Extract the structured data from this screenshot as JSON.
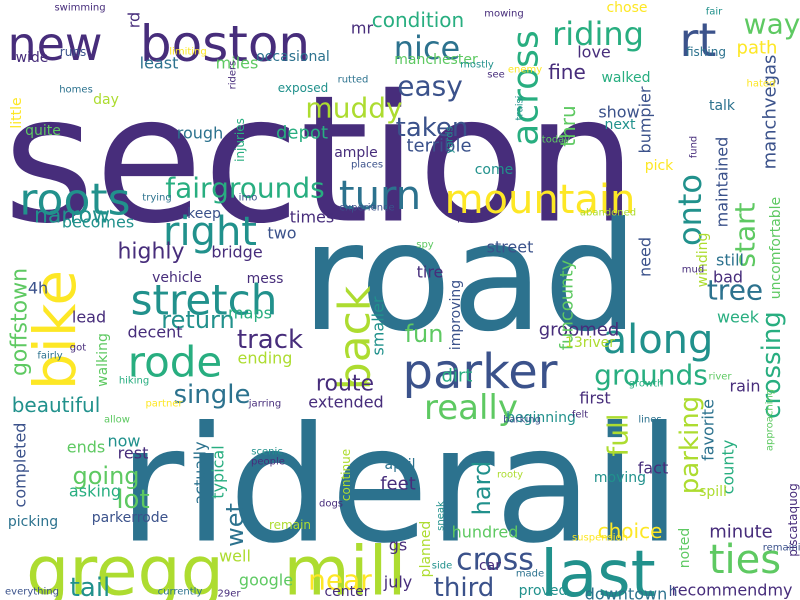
{
  "palette": {
    "deep_purple": "#472d7b",
    "indigo": "#3b528b",
    "blue": "#2c728e",
    "teal": "#21918c",
    "green": "#28ae80",
    "light_green": "#5ec962",
    "lime": "#addc30",
    "yellow": "#fde725"
  },
  "words": [
    {
      "text": "section",
      "color": "#472d7b"
    },
    {
      "text": "road",
      "color": "#2c728e"
    },
    {
      "text": "riderail",
      "color": "#2c728e"
    },
    {
      "text": "new",
      "color": "#472d7b"
    },
    {
      "text": "boston",
      "color": "#472d7b"
    },
    {
      "text": "gregg",
      "color": "#addc30"
    },
    {
      "text": "mill",
      "color": "#addc30"
    },
    {
      "text": "last",
      "color": "#21918c"
    },
    {
      "text": "bike",
      "color": "#fde725"
    },
    {
      "text": "parker",
      "color": "#3b528b"
    },
    {
      "text": "mountain",
      "color": "#fde725"
    },
    {
      "text": "roots",
      "color": "#21918c"
    },
    {
      "text": "right",
      "color": "#21918c"
    },
    {
      "text": "stretch",
      "color": "#21918c"
    },
    {
      "text": "turn",
      "color": "#2c728e"
    },
    {
      "text": "rt",
      "color": "#3b528b"
    },
    {
      "text": "riding",
      "color": "#28ae80"
    },
    {
      "text": "nice",
      "color": "#2c728e"
    },
    {
      "text": "way",
      "color": "#5ec962"
    },
    {
      "text": "across",
      "color": "#28ae80"
    },
    {
      "text": "rode",
      "color": "#28ae80"
    },
    {
      "text": "back",
      "color": "#addc30"
    },
    {
      "text": "along",
      "color": "#21918c"
    },
    {
      "text": "really",
      "color": "#5ec962"
    },
    {
      "text": "cross",
      "color": "#3b528b"
    },
    {
      "text": "ties",
      "color": "#5ec962"
    },
    {
      "text": "single",
      "color": "#2c728e"
    },
    {
      "text": "track",
      "color": "#472d7b"
    },
    {
      "text": "return",
      "color": "#21918c"
    },
    {
      "text": "fairgrounds",
      "color": "#28ae80"
    },
    {
      "text": "tree",
      "color": "#2c728e"
    },
    {
      "text": "start",
      "color": "#5ec962"
    },
    {
      "text": "onto",
      "color": "#21918c"
    },
    {
      "text": "muddy",
      "color": "#addc30"
    },
    {
      "text": "easy",
      "color": "#3b528b"
    },
    {
      "text": "taken",
      "color": "#3b528b"
    },
    {
      "text": "crossing",
      "color": "#28ae80"
    },
    {
      "text": "parking",
      "color": "#addc30"
    },
    {
      "text": "near",
      "color": "#fde725"
    },
    {
      "text": "third",
      "color": "#3b528b"
    },
    {
      "text": "tail",
      "color": "#21918c"
    },
    {
      "text": "lot",
      "color": "#5ec962"
    },
    {
      "text": "going",
      "color": "#5ec962"
    },
    {
      "text": "full",
      "color": "#addc30"
    },
    {
      "text": "hard",
      "color": "#21918c"
    },
    {
      "text": "grounds",
      "color": "#28ae80"
    },
    {
      "text": "goffstown",
      "color": "#5ec962"
    },
    {
      "text": "narrow",
      "color": "#21918c"
    },
    {
      "text": "highly",
      "color": "#472d7b"
    },
    {
      "text": "fun",
      "color": "#5ec962"
    },
    {
      "text": "route",
      "color": "#472d7b"
    },
    {
      "text": "beautiful",
      "color": "#21918c"
    },
    {
      "text": "condition",
      "color": "#28ae80"
    },
    {
      "text": "thru",
      "color": "#5ec962"
    },
    {
      "text": "fine",
      "color": "#472d7b"
    },
    {
      "text": "love",
      "color": "#472d7b"
    },
    {
      "text": "least",
      "color": "#2c728e"
    },
    {
      "text": "miles",
      "color": "#5ec962"
    },
    {
      "text": "path",
      "color": "#fde725"
    },
    {
      "text": "show",
      "color": "#3b528b"
    },
    {
      "text": "rough",
      "color": "#2c728e"
    },
    {
      "text": "depot",
      "color": "#28ae80"
    },
    {
      "text": "terrible",
      "color": "#3b528b"
    },
    {
      "text": "bumpier",
      "color": "#3b528b"
    },
    {
      "text": "maintained",
      "color": "#3b528b"
    },
    {
      "text": "manchvegas",
      "color": "#3b528b"
    },
    {
      "text": "uncomfortable",
      "color": "#5ec962"
    },
    {
      "text": "wet",
      "color": "#2c728e"
    },
    {
      "text": "groomed",
      "color": "#472d7b"
    },
    {
      "text": "dirt",
      "color": "#28ae80"
    },
    {
      "text": "street",
      "color": "#3b528b"
    },
    {
      "text": "tire",
      "color": "#472d7b"
    },
    {
      "text": "funcounty",
      "color": "#5ec962"
    },
    {
      "text": "still",
      "color": "#2c728e"
    },
    {
      "text": "bad",
      "color": "#472d7b"
    },
    {
      "text": "county",
      "color": "#28ae80"
    },
    {
      "text": "favorite",
      "color": "#2c728e"
    },
    {
      "text": "rain",
      "color": "#472d7b"
    },
    {
      "text": "week",
      "color": "#28ae80"
    },
    {
      "text": "need",
      "color": "#3b528b"
    },
    {
      "text": "fact",
      "color": "#472d7b"
    },
    {
      "text": "minute",
      "color": "#472d7b"
    },
    {
      "text": "choice",
      "color": "#fde725"
    },
    {
      "text": "recommendmy",
      "color": "#472d7b"
    },
    {
      "text": "downtown",
      "color": "#2c728e"
    },
    {
      "text": "feet",
      "color": "#472d7b"
    },
    {
      "text": "hundred",
      "color": "#5ec962"
    },
    {
      "text": "july",
      "color": "#472d7b"
    },
    {
      "text": "gs",
      "color": "#472d7b"
    },
    {
      "text": "google",
      "color": "#5ec962"
    },
    {
      "text": "well",
      "color": "#addc30"
    },
    {
      "text": "bridge",
      "color": "#472d7b"
    },
    {
      "text": "maps",
      "color": "#28ae80"
    },
    {
      "text": "decent",
      "color": "#472d7b"
    },
    {
      "text": "ending",
      "color": "#addc30"
    },
    {
      "text": "lead",
      "color": "#472d7b"
    },
    {
      "text": "4h",
      "color": "#3b528b"
    },
    {
      "text": "becomes",
      "color": "#21918c"
    },
    {
      "text": "completed",
      "color": "#3b528b"
    },
    {
      "text": "ends",
      "color": "#5ec962"
    },
    {
      "text": "rest",
      "color": "#472d7b"
    },
    {
      "text": "now",
      "color": "#21918c"
    },
    {
      "text": "typical",
      "color": "#28ae80"
    },
    {
      "text": "actually",
      "color": "#2c728e"
    },
    {
      "text": "extended",
      "color": "#472d7b"
    },
    {
      "text": "first",
      "color": "#472d7b"
    },
    {
      "text": "moving",
      "color": "#21918c"
    },
    {
      "text": "asking",
      "color": "#28ae80"
    },
    {
      "text": "picking",
      "color": "#2c728e"
    },
    {
      "text": "parkerrode",
      "color": "#3b528b"
    },
    {
      "text": "center",
      "color": "#472d7b"
    },
    {
      "text": "proved",
      "color": "#21918c"
    },
    {
      "text": "april",
      "color": "#2c728e"
    },
    {
      "text": "noted",
      "color": "#5ec962"
    },
    {
      "text": "planned",
      "color": "#addc30"
    },
    {
      "text": "beginning",
      "color": "#21918c"
    },
    {
      "text": "smaller",
      "color": "#21918c"
    },
    {
      "text": "times",
      "color": "#472d7b"
    },
    {
      "text": "two",
      "color": "#3b528b"
    },
    {
      "text": "keep",
      "color": "#3b528b"
    },
    {
      "text": "mess",
      "color": "#472d7b"
    },
    {
      "text": "vehicle",
      "color": "#472d7b"
    },
    {
      "text": "walking",
      "color": "#5ec962"
    },
    {
      "text": "continue",
      "color": "#addc30"
    },
    {
      "text": "remain",
      "color": "#addc30"
    },
    {
      "text": "car",
      "color": "#472d7b"
    },
    {
      "text": "13river",
      "color": "#addc30"
    },
    {
      "text": "improving",
      "color": "#3b528b"
    },
    {
      "text": "winding",
      "color": "#addc30"
    },
    {
      "text": "pick",
      "color": "#fde725"
    },
    {
      "text": "come",
      "color": "#21918c"
    },
    {
      "text": "next",
      "color": "#21918c"
    },
    {
      "text": "talk",
      "color": "#2c728e"
    },
    {
      "text": "rd",
      "color": "#472d7b"
    },
    {
      "text": "mr",
      "color": "#472d7b"
    },
    {
      "text": "wide",
      "color": "#472d7b"
    },
    {
      "text": "runs",
      "color": "#3b528b"
    },
    {
      "text": "limiting",
      "color": "#fde725"
    },
    {
      "text": "occasional",
      "color": "#2c728e"
    },
    {
      "text": "manchester",
      "color": "#5ec962"
    },
    {
      "text": "mostly",
      "color": "#21918c"
    },
    {
      "text": "see",
      "color": "#472d7b"
    },
    {
      "text": "chose",
      "color": "#fde725"
    },
    {
      "text": "walked",
      "color": "#28ae80"
    },
    {
      "text": "fishing",
      "color": "#2c728e"
    },
    {
      "text": "hated",
      "color": "#fde725"
    },
    {
      "text": "swimming",
      "color": "#472d7b"
    },
    {
      "text": "mowing",
      "color": "#472d7b"
    },
    {
      "text": "fair",
      "color": "#21918c"
    },
    {
      "text": "enemy",
      "color": "#fde725"
    },
    {
      "text": "homes",
      "color": "#2c728e"
    },
    {
      "text": "exposed",
      "color": "#21918c"
    },
    {
      "text": "rutted",
      "color": "#2c728e"
    },
    {
      "text": "riders",
      "color": "#472d7b"
    },
    {
      "text": "injuries",
      "color": "#28ae80"
    },
    {
      "text": "traisi",
      "color": "#21918c"
    },
    {
      "text": "today",
      "color": "#5ec962"
    },
    {
      "text": "yards",
      "color": "#21918c"
    },
    {
      "text": "little",
      "color": "#fde725"
    },
    {
      "text": "quite",
      "color": "#5ec962"
    },
    {
      "text": "day",
      "color": "#addc30"
    },
    {
      "text": "ample",
      "color": "#472d7b"
    },
    {
      "text": "places",
      "color": "#3b528b"
    },
    {
      "text": "fund",
      "color": "#472d7b"
    },
    {
      "text": "trying",
      "color": "#2c728e"
    },
    {
      "text": "imo",
      "color": "#3b528b"
    },
    {
      "text": "experience",
      "color": "#3b528b"
    },
    {
      "text": "parts",
      "color": "#472d7b"
    },
    {
      "text": "abandoned",
      "color": "#addc30"
    },
    {
      "text": "spy",
      "color": "#5ec962"
    },
    {
      "text": "mud",
      "color": "#472d7b"
    },
    {
      "text": "got",
      "color": "#472d7b"
    },
    {
      "text": "fairly",
      "color": "#2c728e"
    },
    {
      "text": "hiking",
      "color": "#28ae80"
    },
    {
      "text": "partner",
      "color": "#fde725"
    },
    {
      "text": "allow",
      "color": "#5ec962"
    },
    {
      "text": "jarring",
      "color": "#472d7b"
    },
    {
      "text": "barking",
      "color": "#3b528b"
    },
    {
      "text": "lines",
      "color": "#2c728e"
    },
    {
      "text": "felt",
      "color": "#472d7b"
    },
    {
      "text": "growth",
      "color": "#28ae80"
    },
    {
      "text": "river",
      "color": "#5ec962"
    },
    {
      "text": "approaching",
      "color": "#5ec962"
    },
    {
      "text": "piscataquog",
      "color": "#472d7b"
    },
    {
      "text": "spill",
      "color": "#addc30"
    },
    {
      "text": "scenic",
      "color": "#21918c"
    },
    {
      "text": "people",
      "color": "#472d7b"
    },
    {
      "text": "dogs",
      "color": "#472d7b"
    },
    {
      "text": "rooty",
      "color": "#addc30"
    },
    {
      "text": "sneak",
      "color": "#21918c"
    },
    {
      "text": "side",
      "color": "#21918c"
    },
    {
      "text": "suspension",
      "color": "#fde725"
    },
    {
      "text": "made",
      "color": "#2c728e"
    },
    {
      "text": "remaining",
      "color": "#3b528b"
    },
    {
      "text": "everything",
      "color": "#3b528b"
    },
    {
      "text": "currently",
      "color": "#2c728e"
    },
    {
      "text": "29er",
      "color": "#472d7b"
    },
    {
      "text": "h",
      "color": "#3b528b"
    }
  ]
}
